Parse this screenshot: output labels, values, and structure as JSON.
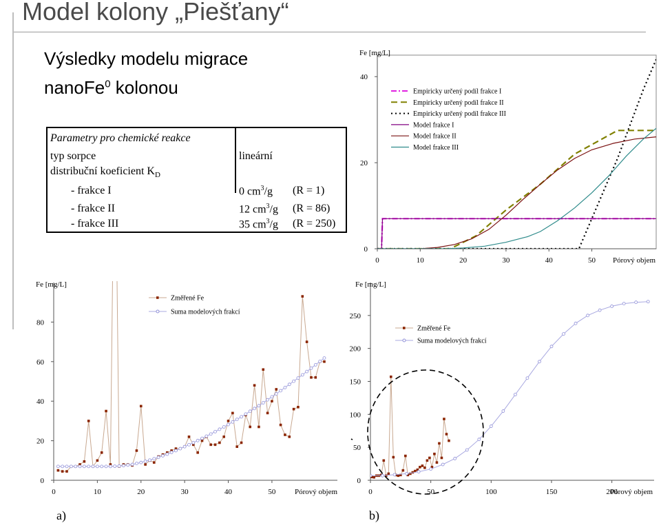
{
  "title": "Model kolony „Piešťany“",
  "subtitle": {
    "line1": "Výsledky modelu migrace",
    "line2_prefix": "nanoFe",
    "line2_sup": "0",
    "line2_suffix": " kolonou"
  },
  "params": {
    "heading": "Parametry pro chemické reakce",
    "row1_label": "typ sorpce",
    "row1_value": "lineární",
    "row2_label": "distribuční koeficient K",
    "row2_sub": "D",
    "fractions": [
      {
        "label": "- frakce I",
        "value": "0 cm",
        "unit_tail": "/g",
        "r": "(R = 1)"
      },
      {
        "label": "- frakce II",
        "value": "12 cm",
        "unit_tail": "/g",
        "r": "(R = 86)"
      },
      {
        "label": "- frakce III",
        "value": "35 cm",
        "unit_tail": "/g",
        "r": "(R = 250)"
      }
    ],
    "sup": "3"
  },
  "panel_labels": {
    "a": "a)",
    "b": "b)"
  },
  "chart_data": [
    {
      "type": "line",
      "ylabel": "Fe [mg/L]",
      "xlabel": "Pórový objem",
      "xlim": [
        0,
        65
      ],
      "ylim": [
        0,
        45
      ],
      "xticks": [
        "0",
        "10",
        "20",
        "30",
        "40",
        "50"
      ],
      "yticks": [
        "0",
        "20",
        "40"
      ],
      "series": [
        {
          "name": "Empiricky určený podíl frakce I",
          "color": "#e020e0",
          "dash": "dashdot",
          "x": [
            0,
            1,
            1.2,
            65
          ],
          "y": [
            0,
            0,
            7,
            7
          ]
        },
        {
          "name": "Empiricky určený podíl frakce II",
          "color": "#808000",
          "dash": "dash",
          "x": [
            0,
            17,
            23,
            30,
            38,
            46,
            56,
            59,
            65
          ],
          "y": [
            0,
            0,
            3,
            9,
            15,
            22,
            27.5,
            27.5,
            27.5
          ]
        },
        {
          "name": "Empiricky určený podíl frakce III",
          "color": "#000000",
          "dash": "dot",
          "x": [
            0,
            46,
            47,
            50,
            53,
            56,
            59,
            62,
            65
          ],
          "y": [
            0,
            0,
            0,
            7,
            14,
            21,
            29,
            37,
            44
          ]
        },
        {
          "name": "Model frakce I",
          "color": "#800080",
          "dash": "solid",
          "x": [
            0,
            1,
            1.2,
            10,
            20,
            30,
            40,
            50,
            60,
            65
          ],
          "y": [
            0,
            0,
            7,
            7,
            7,
            7,
            7,
            7,
            7,
            7
          ]
        },
        {
          "name": "Model frakce II",
          "color": "#7a1010",
          "dash": "solid",
          "x": [
            0,
            10,
            14,
            18,
            22,
            26,
            30,
            34,
            38,
            42,
            46,
            50,
            55,
            60,
            65
          ],
          "y": [
            0,
            0,
            0.3,
            1,
            2.3,
            4.5,
            7.8,
            11.5,
            15,
            18.3,
            21,
            23,
            24.5,
            25.5,
            26
          ]
        },
        {
          "name": "Model frakce III",
          "color": "#2e8b8b",
          "dash": "solid",
          "x": [
            0,
            16,
            20,
            25,
            30,
            35,
            38,
            42,
            46,
            50,
            54,
            58,
            62,
            65
          ],
          "y": [
            0,
            0,
            0.2,
            0.6,
            1.5,
            2.8,
            4,
            6.5,
            9.5,
            13,
            17,
            21.5,
            25.5,
            28
          ]
        }
      ]
    },
    {
      "type": "line",
      "ylabel": "Fe [mg/L]",
      "xlabel": "Pórový objem",
      "xlim": [
        0,
        65
      ],
      "ylim": [
        0,
        100
      ],
      "xticks": [
        "0",
        "10",
        "20",
        "30",
        "40",
        "50"
      ],
      "yticks": [
        "0",
        "20",
        "40",
        "60",
        "80"
      ],
      "series": [
        {
          "name": "Změřené Fe",
          "color": "#8b2500",
          "marker": "square",
          "x": [
            1,
            2,
            3,
            4,
            5,
            6,
            7,
            8,
            9,
            10,
            11,
            12,
            13,
            14,
            15,
            16,
            17,
            18,
            19,
            20,
            21,
            22,
            23,
            24,
            25,
            26,
            27,
            28,
            29,
            30,
            31,
            32,
            33,
            34,
            35,
            36,
            37,
            38,
            39,
            40,
            41,
            42,
            43,
            44,
            45,
            46,
            47,
            48,
            49,
            50,
            51,
            52,
            53,
            54,
            55,
            56,
            57,
            58,
            59,
            60,
            61,
            62
          ],
          "y": [
            5,
            4.5,
            4.5,
            7,
            7,
            8,
            9.5,
            30,
            7,
            10,
            14,
            35,
            8,
            200,
            7,
            8,
            8,
            7.5,
            15,
            37.5,
            8,
            10,
            9,
            12,
            13,
            14,
            15,
            16,
            16,
            17,
            22,
            18,
            14,
            20,
            22,
            18,
            18,
            19,
            22,
            30,
            34,
            17,
            19,
            33,
            27,
            48,
            27,
            56,
            34,
            40,
            46,
            28,
            23,
            22,
            36,
            37,
            93,
            70,
            52,
            52,
            60,
            60
          ]
        },
        {
          "name": "Suma modelových frakcí",
          "color": "#9090d8",
          "marker": "circle",
          "x": [
            1,
            2,
            3,
            4,
            5,
            6,
            7,
            8,
            9,
            10,
            11,
            12,
            13,
            14,
            15,
            16,
            17,
            18,
            19,
            20,
            21,
            22,
            23,
            24,
            25,
            26,
            27,
            28,
            29,
            30,
            31,
            32,
            33,
            34,
            35,
            36,
            37,
            38,
            39,
            40,
            41,
            42,
            43,
            44,
            45,
            46,
            47,
            48,
            49,
            50,
            51,
            52,
            53,
            54,
            55,
            56,
            57,
            58,
            59,
            60,
            61,
            62
          ],
          "y": [
            7,
            7,
            7,
            7,
            7,
            7,
            7,
            7,
            7,
            7,
            7,
            7,
            7,
            7.1,
            7.2,
            7.4,
            7.7,
            8,
            8.5,
            9,
            9.6,
            10.2,
            10.9,
            11.6,
            12.4,
            13.2,
            14.1,
            15,
            16,
            17,
            18,
            19,
            20.1,
            21.2,
            22.3,
            23.4,
            24.6,
            25.8,
            27,
            28.2,
            29.5,
            30.8,
            32.1,
            33.5,
            34.9,
            36.3,
            37.7,
            39.2,
            40.7,
            42.2,
            43.7,
            45.3,
            46.9,
            48.5,
            50.1,
            51.7,
            53.3,
            55,
            56.7,
            58.4,
            60.1,
            61.8
          ]
        }
      ]
    },
    {
      "type": "line",
      "ylabel": "Fe [mg/L]",
      "xlabel": "Pórový objem",
      "xlim": [
        0,
        235
      ],
      "ylim": [
        0,
        300
      ],
      "xticks": [
        "0",
        "50",
        "100",
        "150",
        "200"
      ],
      "yticks": [
        "0",
        "50",
        "100",
        "150",
        "200",
        "250"
      ],
      "series": [
        {
          "name": "Změřené Fe",
          "color": "#8b2500",
          "marker": "square",
          "x": [
            1,
            3,
            5,
            7,
            9,
            11,
            13,
            15,
            17,
            19,
            21,
            23,
            25,
            27,
            29,
            31,
            33,
            35,
            37,
            39,
            41,
            43,
            45,
            47,
            49,
            51,
            53,
            55,
            57,
            59,
            61,
            63,
            65
          ],
          "y": [
            5,
            4.5,
            7,
            7,
            8,
            30,
            7,
            10,
            157,
            35,
            8,
            7,
            8,
            15,
            37,
            8,
            10,
            12,
            14,
            16,
            20,
            22,
            19,
            30,
            34,
            20,
            40,
            27,
            56,
            34,
            93,
            70,
            60
          ]
        },
        {
          "name": "Suma modelových frakcí",
          "color": "#9090d8",
          "marker": "circle",
          "x": [
            0,
            10,
            20,
            30,
            40,
            50,
            60,
            70,
            80,
            90,
            100,
            110,
            120,
            130,
            140,
            150,
            160,
            170,
            180,
            190,
            200,
            210,
            220,
            230
          ],
          "y": [
            7,
            7,
            8.5,
            10,
            13,
            17,
            24,
            33,
            46,
            62,
            82,
            105,
            130,
            155,
            180,
            203,
            222,
            238,
            250,
            258,
            264,
            268,
            270,
            271
          ]
        }
      ]
    }
  ]
}
